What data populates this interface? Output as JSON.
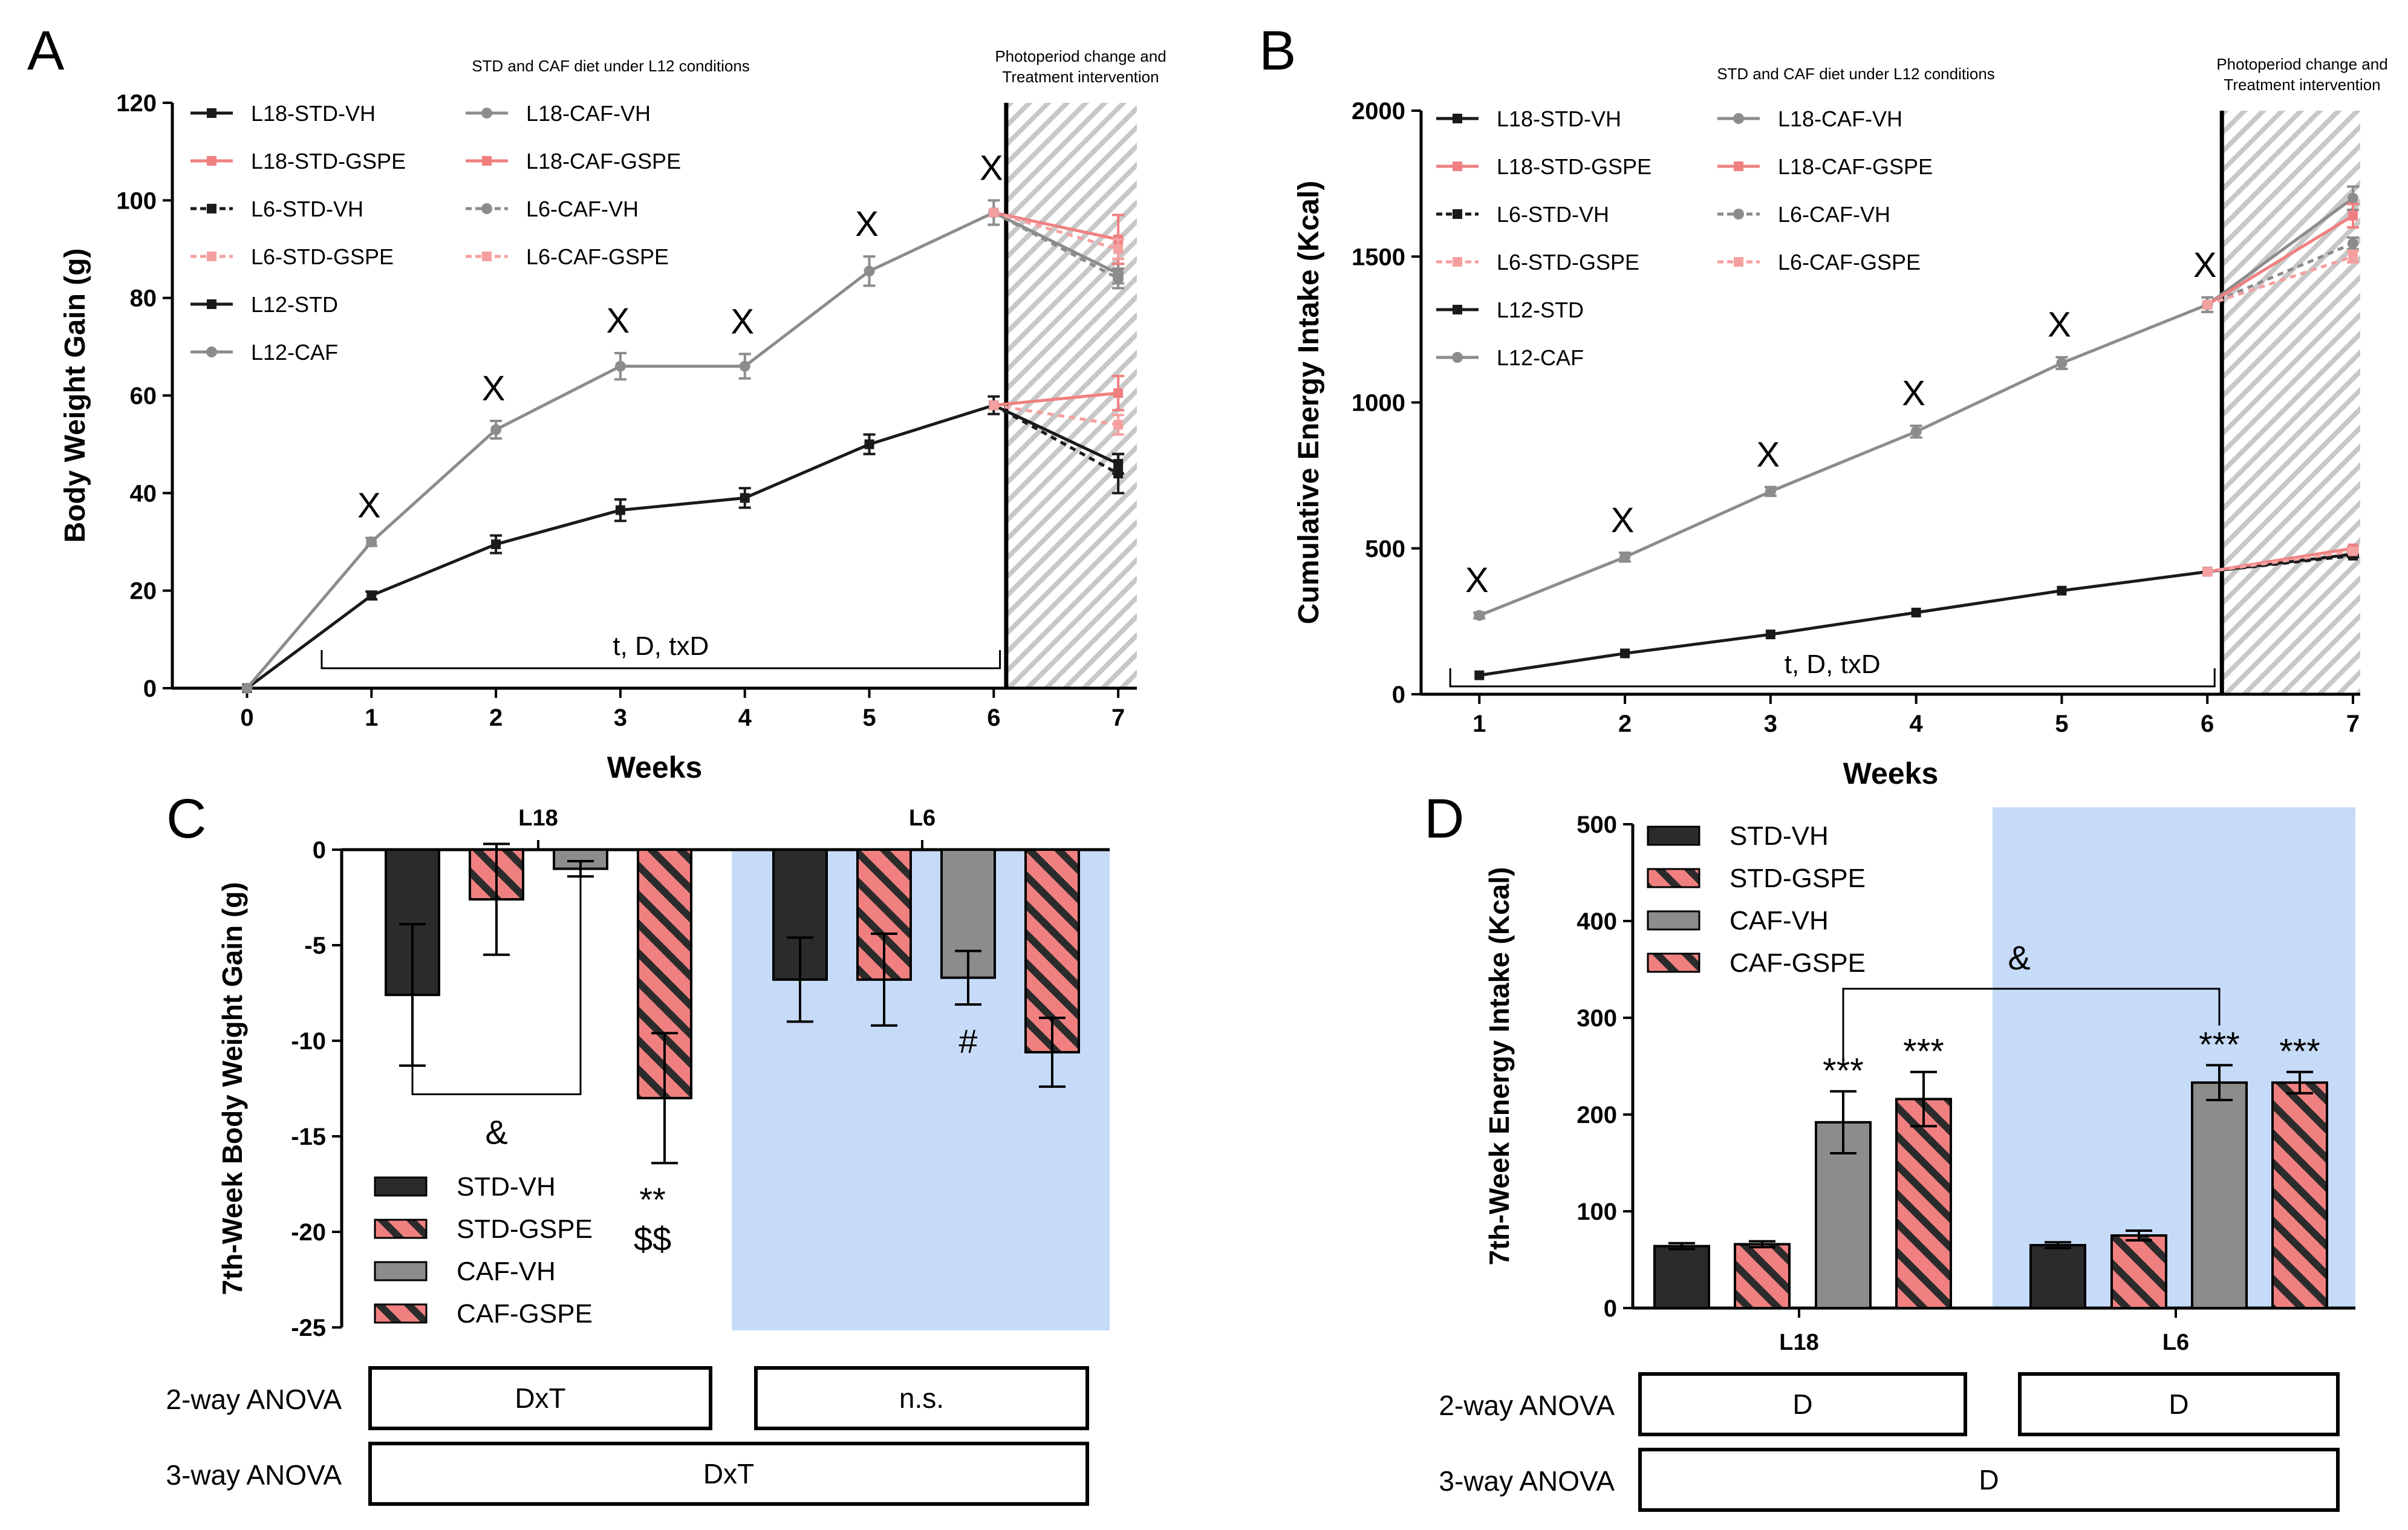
{
  "colors": {
    "black": "#1a1a1a",
    "gray": "#8c8c8c",
    "pink": "#f08080",
    "pinkDash": "#f5a0a0",
    "blue": "#c6dbf7",
    "dark": "#2b2b2b"
  },
  "chart_data": [
    {
      "panel": "A",
      "type": "line",
      "title": "STD and CAF diet under L12 conditions",
      "side_note": [
        "Photoperiod change and",
        "Treatment intervention"
      ],
      "xlabel": "Weeks",
      "ylabel": "Body Weight Gain (g)",
      "xlim": [
        -0.6,
        7.15
      ],
      "ylim": [
        0,
        120
      ],
      "xticks": [
        "0",
        "1",
        "2",
        "3",
        "4",
        "5",
        "6",
        "7"
      ],
      "yticks": [
        "0",
        "20",
        "40",
        "60",
        "80",
        "100",
        "120"
      ],
      "stats_text": "t, D, txD",
      "bracket_x": [
        0.6,
        6.05
      ],
      "sig_mark": "X",
      "sig_weeks": [
        1,
        2,
        3,
        4,
        5,
        6
      ],
      "legend": [
        {
          "label": "L18-STD-VH",
          "style": "black-solid"
        },
        {
          "label": "L18-STD-GSPE",
          "style": "pink-solid"
        },
        {
          "label": "L6-STD-VH",
          "style": "black-dash"
        },
        {
          "label": "L6-STD-GSPE",
          "style": "pink-dash"
        },
        {
          "label": "L12-STD",
          "style": "black-solid"
        },
        {
          "label": "L12-CAF",
          "style": "gray-solid"
        },
        {
          "label": "L18-CAF-VH",
          "style": "gray-solid"
        },
        {
          "label": "L18-CAF-GSPE",
          "style": "pink-solid"
        },
        {
          "label": "L6-CAF-VH",
          "style": "gray-dash"
        },
        {
          "label": "L6-CAF-GSPE",
          "style": "pink-dash"
        }
      ],
      "series": [
        {
          "name": "L12-STD",
          "style": "black-solid",
          "x": [
            0,
            1,
            2,
            3,
            4,
            5,
            6
          ],
          "y": [
            0,
            19,
            29.5,
            36.5,
            39,
            50,
            58
          ],
          "err": [
            0,
            0.8,
            1.8,
            2.2,
            2,
            2,
            1.8
          ]
        },
        {
          "name": "L12-CAF",
          "style": "gray-solid",
          "x": [
            0,
            1,
            2,
            3,
            4,
            5,
            6
          ],
          "y": [
            0,
            30,
            53,
            66,
            66,
            85.5,
            97.5
          ],
          "err": [
            0,
            0.8,
            1.8,
            2.7,
            2.5,
            3,
            2.5
          ]
        },
        {
          "name": "L18-STD-VH",
          "style": "black-solid",
          "x": [
            6,
            7
          ],
          "y": [
            58,
            46
          ],
          "err": [
            0,
            2
          ]
        },
        {
          "name": "L18-STD-GSPE",
          "style": "pink-solid",
          "x": [
            6,
            7
          ],
          "y": [
            58,
            60.5
          ],
          "err": [
            0,
            3.5
          ]
        },
        {
          "name": "L6-STD-VH",
          "style": "black-dash",
          "x": [
            6,
            7
          ],
          "y": [
            58,
            44
          ],
          "err": [
            0,
            4
          ]
        },
        {
          "name": "L6-STD-GSPE",
          "style": "pink-dash",
          "x": [
            6,
            7
          ],
          "y": [
            58,
            54
          ],
          "err": [
            0,
            2
          ]
        },
        {
          "name": "L18-CAF-VH",
          "style": "gray-solid",
          "x": [
            6,
            7
          ],
          "y": [
            97.5,
            85
          ],
          "err": [
            0,
            2
          ]
        },
        {
          "name": "L18-CAF-GSPE",
          "style": "pink-solid",
          "x": [
            6,
            7
          ],
          "y": [
            97.5,
            92
          ],
          "err": [
            0,
            5
          ]
        },
        {
          "name": "L6-CAF-VH",
          "style": "gray-dash",
          "x": [
            6,
            7
          ],
          "y": [
            97.5,
            84
          ],
          "err": [
            0,
            2
          ]
        },
        {
          "name": "L6-CAF-GSPE",
          "style": "pink-dash",
          "x": [
            6,
            7
          ],
          "y": [
            97.5,
            90
          ],
          "err": [
            0,
            2
          ]
        }
      ]
    },
    {
      "panel": "B",
      "type": "line",
      "title": "STD and CAF diet under L12 conditions",
      "side_note": [
        "Photoperiod change and",
        "Treatment intervention"
      ],
      "xlabel": "Weeks",
      "ylabel": "Cumulative Energy Intake (Kcal)",
      "xlim": [
        0.6,
        7.05
      ],
      "ylim": [
        0,
        2000
      ],
      "xticks": [
        "1",
        "2",
        "3",
        "4",
        "5",
        "6",
        "7"
      ],
      "yticks": [
        "0",
        "500",
        "1000",
        "1500",
        "2000"
      ],
      "stats_text": "t, D, txD",
      "bracket_x": [
        0.8,
        6.05
      ],
      "sig_mark": "X",
      "sig_weeks": [
        1,
        2,
        3,
        4,
        5,
        6
      ],
      "legend": [
        {
          "label": "L18-STD-VH",
          "style": "black-solid"
        },
        {
          "label": "L18-STD-GSPE",
          "style": "pink-solid"
        },
        {
          "label": "L6-STD-VH",
          "style": "black-dash"
        },
        {
          "label": "L6-STD-GSPE",
          "style": "pink-dash"
        },
        {
          "label": "L12-STD",
          "style": "black-solid"
        },
        {
          "label": "L12-CAF",
          "style": "gray-solid"
        },
        {
          "label": "L18-CAF-VH",
          "style": "gray-solid"
        },
        {
          "label": "L18-CAF-GSPE",
          "style": "pink-solid"
        },
        {
          "label": "L6-CAF-VH",
          "style": "gray-dash"
        },
        {
          "label": "L6-CAF-GSPE",
          "style": "pink-dash"
        }
      ],
      "series": [
        {
          "name": "L12-STD",
          "style": "black-solid",
          "x": [
            1,
            2,
            3,
            4,
            5,
            6
          ],
          "y": [
            65,
            140,
            205,
            280,
            355,
            420
          ],
          "err": [
            0,
            0,
            0,
            0,
            0,
            0
          ]
        },
        {
          "name": "L12-CAF",
          "style": "gray-solid",
          "x": [
            1,
            2,
            3,
            4,
            5,
            6
          ],
          "y": [
            270,
            470,
            695,
            900,
            1135,
            1335
          ],
          "err": [
            10,
            15,
            15,
            20,
            20,
            25
          ]
        },
        {
          "name": "L18-STD-VH",
          "style": "black-solid",
          "x": [
            6,
            7
          ],
          "y": [
            420,
            480
          ],
          "err": [
            0,
            5
          ]
        },
        {
          "name": "L18-STD-GSPE",
          "style": "pink-solid",
          "x": [
            6,
            7
          ],
          "y": [
            420,
            500
          ],
          "err": [
            0,
            5
          ]
        },
        {
          "name": "L6-STD-VH",
          "style": "black-dash",
          "x": [
            6,
            7
          ],
          "y": [
            420,
            475
          ],
          "err": [
            0,
            5
          ]
        },
        {
          "name": "L6-STD-GSPE",
          "style": "pink-dash",
          "x": [
            6,
            7
          ],
          "y": [
            420,
            490
          ],
          "err": [
            0,
            5
          ]
        },
        {
          "name": "L18-CAF-VH",
          "style": "gray-solid",
          "x": [
            6,
            7
          ],
          "y": [
            1335,
            1700
          ],
          "err": [
            0,
            40
          ]
        },
        {
          "name": "L18-CAF-GSPE",
          "style": "pink-solid",
          "x": [
            6,
            7
          ],
          "y": [
            1335,
            1640
          ],
          "err": [
            0,
            40
          ]
        },
        {
          "name": "L6-CAF-VH",
          "style": "gray-dash",
          "x": [
            6,
            7
          ],
          "y": [
            1335,
            1545
          ],
          "err": [
            0,
            20
          ]
        },
        {
          "name": "L6-CAF-GSPE",
          "style": "pink-dash",
          "x": [
            6,
            7
          ],
          "y": [
            1335,
            1500
          ],
          "err": [
            0,
            20
          ]
        }
      ]
    },
    {
      "panel": "C",
      "type": "bar",
      "ylabel": "7th-Week Body Weight Gain (g)",
      "ylim": [
        -25,
        0
      ],
      "yticks": [
        "0",
        "-5",
        "-10",
        "-15",
        "-20",
        "-25"
      ],
      "groups": [
        "L18",
        "L6"
      ],
      "legend": [
        {
          "label": "STD-VH",
          "style": "dark"
        },
        {
          "label": "STD-GSPE",
          "style": "hatch"
        },
        {
          "label": "CAF-VH",
          "style": "gray"
        },
        {
          "label": "CAF-GSPE",
          "style": "hatch"
        }
      ],
      "series": [
        {
          "name": "STD-VH",
          "style": "dark",
          "values": [
            -7.6,
            -6.8
          ],
          "err": [
            3.7,
            2.2
          ]
        },
        {
          "name": "STD-GSPE",
          "style": "hatch",
          "values": [
            -2.6,
            -6.8
          ],
          "err": [
            2.9,
            2.4
          ]
        },
        {
          "name": "CAF-VH",
          "style": "gray",
          "values": [
            -1,
            -6.7
          ],
          "err": [
            0.4,
            1.4
          ]
        },
        {
          "name": "CAF-GSPE",
          "style": "hatch",
          "values": [
            -13,
            -10.6
          ],
          "err": [
            3.4,
            1.8
          ]
        }
      ],
      "annotations": {
        "amp": "&",
        "double_star": "**",
        "double_dollar": "$$",
        "hash": "#"
      },
      "anova": {
        "two_way_label": "2-way ANOVA",
        "three_way_label": "3-way ANOVA",
        "two_way": [
          "DxT",
          "n.s."
        ],
        "three_way": "DxT"
      }
    },
    {
      "panel": "D",
      "type": "bar",
      "ylabel": "7th-Week Energy Intake (Kcal)",
      "ylim": [
        0,
        500
      ],
      "yticks": [
        "0",
        "100",
        "200",
        "300",
        "400",
        "500"
      ],
      "groups": [
        "L18",
        "L6"
      ],
      "legend": [
        {
          "label": "STD-VH",
          "style": "dark"
        },
        {
          "label": "STD-GSPE",
          "style": "hatch"
        },
        {
          "label": "CAF-VH",
          "style": "gray"
        },
        {
          "label": "CAF-GSPE",
          "style": "hatch"
        }
      ],
      "series": [
        {
          "name": "STD-VH",
          "style": "dark",
          "values": [
            64,
            65
          ],
          "err": [
            3,
            3
          ]
        },
        {
          "name": "STD-GSPE",
          "style": "hatch",
          "values": [
            66,
            75
          ],
          "err": [
            3,
            5
          ]
        },
        {
          "name": "CAF-VH",
          "style": "gray",
          "values": [
            192,
            233
          ],
          "err": [
            32,
            18
          ]
        },
        {
          "name": "CAF-GSPE",
          "style": "hatch",
          "values": [
            216,
            233
          ],
          "err": [
            28,
            11
          ]
        }
      ],
      "annotations": {
        "amp": "&",
        "triple_star": "***"
      },
      "anova": {
        "two_way_label": "2-way ANOVA",
        "three_way_label": "3-way ANOVA",
        "two_way": [
          "D",
          "D"
        ],
        "three_way": "D"
      }
    }
  ]
}
